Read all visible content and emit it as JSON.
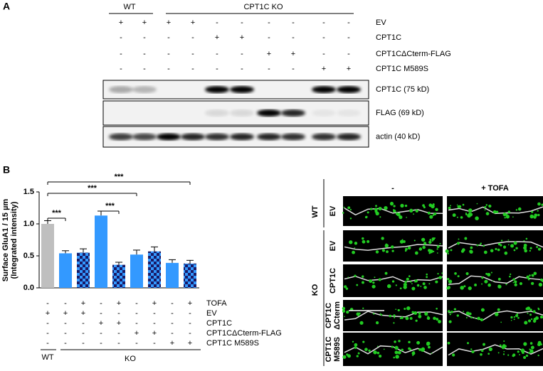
{
  "panel_a": {
    "label": "A",
    "groups": [
      "WT",
      "CPT1C KO"
    ],
    "conditions": [
      {
        "name": "EV",
        "signs": [
          "+",
          "+",
          "+",
          "+",
          "-",
          "-",
          "-",
          "-",
          "-",
          "-"
        ]
      },
      {
        "name": "CPT1C",
        "signs": [
          "-",
          "-",
          "-",
          "-",
          "+",
          "+",
          "-",
          "-",
          "-",
          "-"
        ]
      },
      {
        "name": "CPT1CΔCterm-FLAG",
        "signs": [
          "-",
          "-",
          "-",
          "-",
          "-",
          "-",
          "+",
          "+",
          "-",
          "-"
        ]
      },
      {
        "name": "CPT1C M589S",
        "signs": [
          "-",
          "-",
          "-",
          "-",
          "-",
          "-",
          "-",
          "-",
          "+",
          "+"
        ]
      }
    ],
    "blots": [
      "CPT1C (75 kD)",
      "FLAG   (69 kD)",
      "actin    (40 kD)"
    ]
  },
  "chart_data": {
    "type": "bar",
    "label": "B",
    "ylabel": [
      "Surface GluA1 / 15 µm",
      "(Integrated intensity)"
    ],
    "values": [
      1.0,
      0.54,
      0.55,
      1.13,
      0.36,
      0.52,
      0.57,
      0.39,
      0.38
    ],
    "errors": [
      0.05,
      0.04,
      0.06,
      0.07,
      0.04,
      0.07,
      0.07,
      0.05,
      0.05
    ],
    "colors": [
      "#bfbfbf",
      "#3399ff",
      "#3399ff",
      "#3399ff",
      "#3399ff",
      "#3399ff",
      "#3399ff",
      "#3399ff",
      "#3399ff"
    ],
    "ylim": [
      0,
      1.5
    ],
    "yticks": [
      {
        "value": 0,
        "label": "0.0"
      },
      0.5,
      {
        "value": 1,
        "label": "1.0"
      },
      1.5
    ],
    "conditions": [
      {
        "name": "TOFA",
        "signs": [
          "-",
          "-",
          "+",
          "-",
          "+",
          "-",
          "+",
          "-",
          "+"
        ]
      },
      {
        "name": "EV",
        "signs": [
          "+",
          "+",
          "+",
          "-",
          "-",
          "-",
          "-",
          "-",
          "-"
        ]
      },
      {
        "name": "CPT1C",
        "signs": [
          "-",
          "-",
          "-",
          "+",
          "+",
          "-",
          "-",
          "-",
          "-"
        ]
      },
      {
        "name": "CPT1CΔCterm-FLAG",
        "signs": [
          "-",
          "-",
          "-",
          "-",
          "-",
          "+",
          "+",
          "-",
          "-"
        ]
      },
      {
        "name": "CPT1C M589S",
        "signs": [
          "-",
          "-",
          "-",
          "-",
          "-",
          "-",
          "-",
          "+",
          "+"
        ]
      }
    ],
    "groups": [
      "WT",
      "KO"
    ],
    "significance": [
      {
        "from": 0,
        "to": 1,
        "text": "***"
      },
      {
        "from": 3,
        "to": 4,
        "text": "***"
      },
      {
        "from": 0,
        "to": 5,
        "text": "***"
      },
      {
        "from": 0,
        "to": 8,
        "text": "***"
      }
    ]
  },
  "panel_c": {
    "columns": [
      "-",
      "+ TOFA"
    ],
    "groups": [
      "WT",
      "KO"
    ],
    "rows": [
      [
        "EV"
      ],
      [
        "EV"
      ],
      [
        "CPT1C"
      ],
      [
        "CPT1C",
        "ΔCterm"
      ],
      [
        "CPT1C",
        "M589S"
      ]
    ]
  }
}
